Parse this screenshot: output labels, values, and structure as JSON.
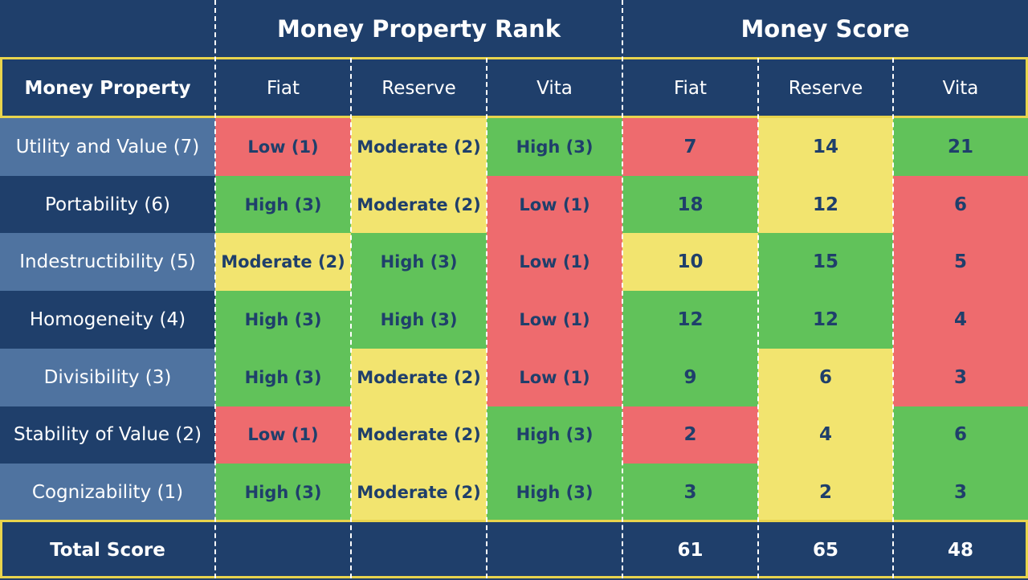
{
  "header": {
    "rank_group": "Money Property Rank",
    "score_group": "Money Score"
  },
  "columns": {
    "property": "Money Property",
    "rank": [
      "Fiat",
      "Reserve",
      "Vita"
    ],
    "score": [
      "Fiat",
      "Reserve",
      "Vita"
    ]
  },
  "rows": [
    {
      "label": "Utility and Value (7)",
      "ranks": [
        "Low (1)",
        "Moderate (2)",
        "High (3)"
      ],
      "scores": [
        "7",
        "14",
        "21"
      ]
    },
    {
      "label": "Portability (6)",
      "ranks": [
        "High (3)",
        "Moderate (2)",
        "Low (1)"
      ],
      "scores": [
        "18",
        "12",
        "6"
      ]
    },
    {
      "label": "Indestructibility (5)",
      "ranks": [
        "Moderate (2)",
        "High (3)",
        "Low (1)"
      ],
      "scores": [
        "10",
        "15",
        "5"
      ]
    },
    {
      "label": "Homogeneity (4)",
      "ranks": [
        "High (3)",
        "High (3)",
        "Low (1)"
      ],
      "scores": [
        "12",
        "12",
        "4"
      ]
    },
    {
      "label": "Divisibility (3)",
      "ranks": [
        "High (3)",
        "Moderate (2)",
        "Low (1)"
      ],
      "scores": [
        "9",
        "6",
        "3"
      ]
    },
    {
      "label": "Stability of Value (2)",
      "ranks": [
        "Low (1)",
        "Moderate (2)",
        "High (3)"
      ],
      "scores": [
        "2",
        "4",
        "6"
      ]
    },
    {
      "label": "Cognizability (1)",
      "ranks": [
        "High (3)",
        "Moderate (2)",
        "High (3)"
      ],
      "scores": [
        "3",
        "2",
        "3"
      ]
    }
  ],
  "total": {
    "label": "Total Score",
    "scores": [
      "61",
      "65",
      "48"
    ]
  },
  "colors": {
    "header_bg": "#1f3f6b",
    "row_alt_bg": "#4f73a0",
    "low": "#ee6b6e",
    "moderate": "#f2e46f",
    "high": "#61c25a",
    "border_gold": "#e8d44d"
  }
}
